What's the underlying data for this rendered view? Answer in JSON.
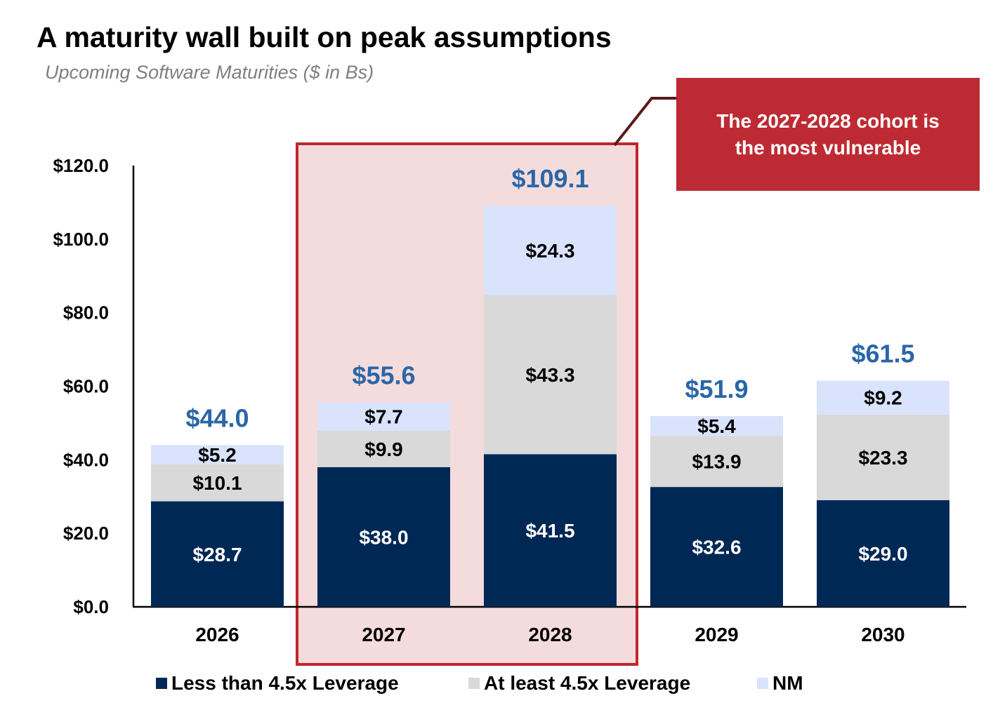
{
  "title": "A maturity wall built on peak assumptions",
  "subtitle": "Upcoming Software Maturities ($ in Bs)",
  "callout": {
    "line1": "The 2027-2028 cohort is",
    "line2": "the most vulnerable",
    "highlight_categories": [
      "2027",
      "2028"
    ]
  },
  "colors": {
    "less": "#002855",
    "atleast": "#d9d9d9",
    "nm": "#dae3fc",
    "total": "#2a66a8",
    "highlight_fill": "#f4dcdd",
    "highlight_border": "#c0272d",
    "callout": "#be2a33"
  },
  "chart_data": {
    "type": "bar",
    "stacked": true,
    "categories": [
      "2026",
      "2027",
      "2028",
      "2029",
      "2030"
    ],
    "series": [
      {
        "name": "Less than 4.5x Leverage",
        "values": [
          28.7,
          38.0,
          41.5,
          32.6,
          29.0
        ],
        "labels": [
          "$28.7",
          "$38.0",
          "$41.5",
          "$32.6",
          "$29.0"
        ]
      },
      {
        "name": "At least 4.5x Leverage",
        "values": [
          10.1,
          9.9,
          43.3,
          13.9,
          23.3
        ],
        "labels": [
          "$10.1",
          "$9.9",
          "$43.3",
          "$13.9",
          "$23.3"
        ]
      },
      {
        "name": "NM",
        "values": [
          5.2,
          7.7,
          24.3,
          5.4,
          9.2
        ],
        "labels": [
          "$5.2",
          "$7.7",
          "$24.3",
          "$5.4",
          "$9.2"
        ]
      }
    ],
    "totals": [
      "$44.0",
      "$55.6",
      "$109.1",
      "$51.9",
      "$61.5"
    ],
    "yticks": [
      "$0.0",
      "$20.0",
      "$40.0",
      "$60.0",
      "$80.0",
      "$100.0",
      "$120.0"
    ],
    "ylim": [
      0,
      120
    ],
    "grid": false,
    "legend": "bottom"
  }
}
